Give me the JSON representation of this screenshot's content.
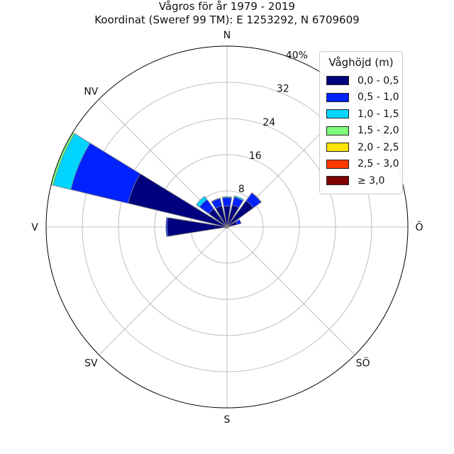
{
  "title": {
    "line1": "Vågros för år 1979 - 2019",
    "line2": "Koordinat (Sweref 99 TM): E 1253292, N 6709609"
  },
  "colors": {
    "bins": [
      "#00007f",
      "#0022ff",
      "#00d4ff",
      "#7dff7a",
      "#ffe500",
      "#ff3a00",
      "#7f0000"
    ],
    "grid": "#b0b0b0",
    "edge": "#808080"
  },
  "chart_data": {
    "type": "windrose",
    "title": "Vågros för år 1979 - 2019",
    "subtitle": "Koordinat (Sweref 99 TM): E 1253292, N 6709609",
    "directions": [
      "N",
      "NNÖ",
      "NÖ",
      "ÖNÖ",
      "Ö",
      "ÖSÖ",
      "SÖ",
      "SSÖ",
      "S",
      "SSV",
      "SV",
      "VSV",
      "V",
      "VNV",
      "NV",
      "NNV"
    ],
    "compass_labels": [
      "N",
      "NÖ",
      "Ö",
      "SÖ",
      "S",
      "SV",
      "V",
      "NV"
    ],
    "r_ticks": [
      "8",
      "16",
      "24",
      "32",
      "40%"
    ],
    "r_tick_values": [
      8,
      16,
      24,
      32,
      40
    ],
    "rmax": 40,
    "legend_title": "Våghöjd (m)",
    "legend_position": "upper-right",
    "bins": [
      "0,0 - 0,5",
      "0,5 - 1,0",
      "1,0 - 1,5",
      "1,5 - 2,0",
      "2,0 - 2,5",
      "2,5 - 3,0",
      "≥ 3,0"
    ],
    "cumulative": [
      [
        4.6,
        6.5,
        6.7,
        6.7,
        6.7,
        6.7,
        6.7
      ],
      [
        5.0,
        6.8,
        7.1,
        7.1,
        7.1,
        7.1,
        7.1
      ],
      [
        7.2,
        9.3,
        9.4,
        9.4,
        9.4,
        9.4,
        9.4
      ],
      [
        2.3,
        3.2,
        3.2,
        3.2,
        3.2,
        3.2,
        3.2
      ],
      [
        0.4,
        0.4,
        0.4,
        0.4,
        0.4,
        0.4,
        0.4
      ],
      [
        0.2,
        0.2,
        0.2,
        0.2,
        0.2,
        0.2,
        0.2
      ],
      [
        0.3,
        0.3,
        0.3,
        0.3,
        0.3,
        0.3,
        0.3
      ],
      [
        0.2,
        0.2,
        0.2,
        0.2,
        0.2,
        0.2,
        0.2
      ],
      [
        0.2,
        0.2,
        0.2,
        0.2,
        0.2,
        0.2,
        0.2
      ],
      [
        0.2,
        0.2,
        0.2,
        0.2,
        0.2,
        0.2,
        0.2
      ],
      [
        0.3,
        0.3,
        0.3,
        0.3,
        0.3,
        0.3,
        0.3
      ],
      [
        0.5,
        0.5,
        0.5,
        0.5,
        0.5,
        0.5,
        0.5
      ],
      [
        13.2,
        13.5,
        13.5,
        13.5,
        13.5,
        13.5,
        13.5
      ],
      [
        22.5,
        35.5,
        39.5,
        40.0,
        40.0,
        40.0,
        40.0
      ],
      [
        5.0,
        7.5,
        8.4,
        8.4,
        8.4,
        8.4,
        8.4
      ],
      [
        4.8,
        6.5,
        6.6,
        6.6,
        6.6,
        6.6,
        6.6
      ]
    ]
  }
}
